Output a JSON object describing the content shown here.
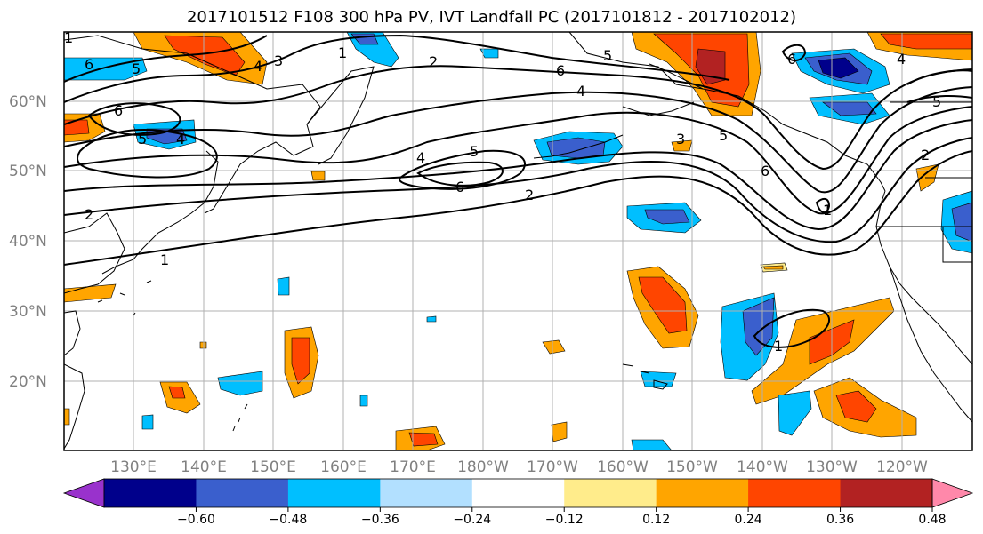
{
  "title": "2017101512 F108 300 hPa PV, IVT Landfall PC (2017101812 - 2017102012)",
  "lat_labels": [
    "60°N",
    "50°N",
    "40°N",
    "30°N",
    "20°N"
  ],
  "lon_labels": [
    "130°E",
    "140°E",
    "150°E",
    "160°E",
    "170°E",
    "180°W",
    "170°W",
    "160°W",
    "150°W",
    "140°W",
    "130°W",
    "120°W"
  ],
  "colorbar": {
    "ticks": [
      "−0.60",
      "−0.48",
      "−0.36",
      "−0.24",
      "−0.12",
      "0.12",
      "0.24",
      "0.36",
      "0.48",
      "0.60"
    ],
    "colors": [
      "#9932cc",
      "#00008b",
      "#3a5fcd",
      "#00bfff",
      "#b2e0ff",
      "#ffffff",
      "#ffec8b",
      "#ffa500",
      "#ff4500",
      "#b22222",
      "#ff88aa"
    ]
  },
  "contour_labels": [
    "6",
    "5",
    "4",
    "3",
    "1",
    "2",
    "6",
    "5",
    "2",
    "1",
    "6",
    "5",
    "4",
    "6",
    "5",
    "4",
    "2",
    "6",
    "3",
    "5",
    "4",
    "6",
    "1",
    "2",
    "1",
    "5",
    "4",
    "1"
  ],
  "shading_colors": {
    "neg_dark": "#00008b",
    "neg_mid": "#3a5fcd",
    "neg_light": "#00bfff",
    "pos_light": "#ffec8b",
    "pos_mid": "#ffa500",
    "pos_strong": "#ff4500",
    "pos_dark": "#b22222"
  }
}
